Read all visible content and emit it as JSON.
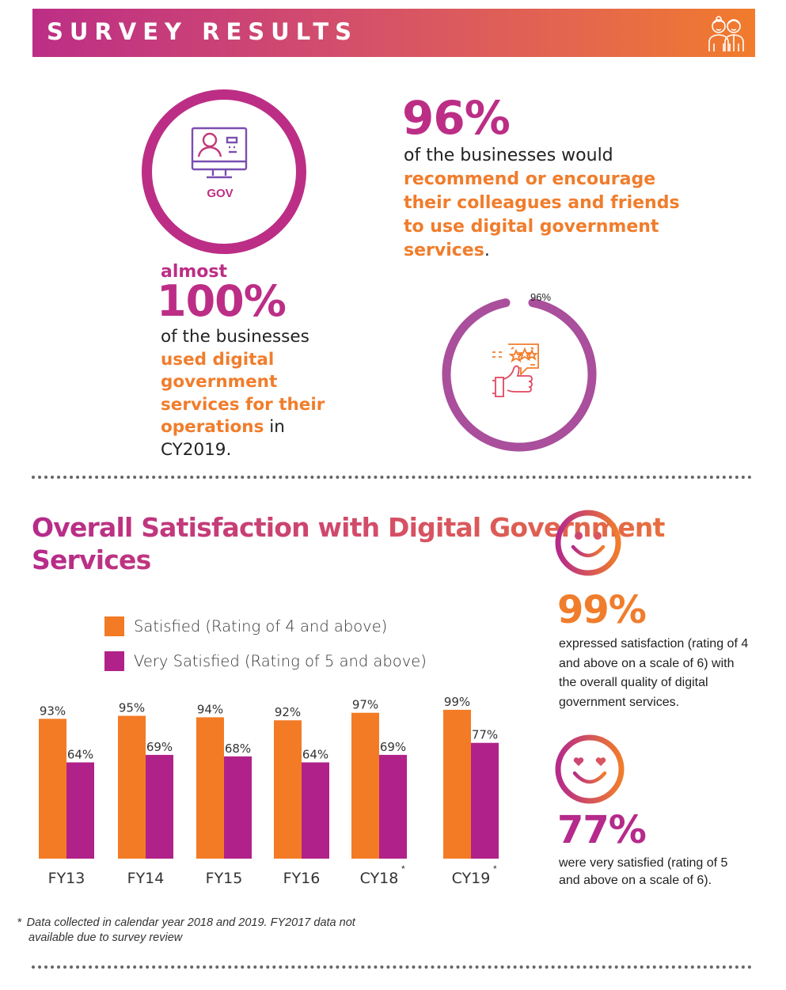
{
  "banner": {
    "title": "SURVEY RESULTS",
    "icon": "people-icon"
  },
  "gov_badge": {
    "label": "GOV",
    "icon": "computer-profile-icon"
  },
  "recommend": {
    "value": "96%",
    "lead": "of the businesses would",
    "highlight": "recommend or encourage their colleagues and friends to use digital government services",
    "tail": "."
  },
  "usage": {
    "prefix": "almost",
    "value": "100%",
    "lead": "of the businesses",
    "highlight": "used digital government services for their operations",
    "tail": " in CY2019."
  },
  "donut": {
    "label": "96%",
    "fraction": 0.96,
    "color": "#a94f9c",
    "icon": "thumbs-up-rating-icon"
  },
  "colors": {
    "satisfied": "#f37b25",
    "very_satisfied": "#b02289",
    "magenta": "#bc2e86",
    "orange": "#f07d2c"
  },
  "chart_data": {
    "type": "bar",
    "title": "Overall Satisfaction with Digital Government Services",
    "categories": [
      "FY13",
      "FY14",
      "FY15",
      "FY16",
      "CY18",
      "CY19"
    ],
    "category_marks": [
      "",
      "",
      "",
      "",
      "*",
      "*"
    ],
    "series": [
      {
        "name": "Satisfied (Rating of 4 and above)",
        "values": [
          93,
          95,
          94,
          92,
          97,
          99
        ]
      },
      {
        "name": "Very Satisfied (Rating of 5 and above)",
        "values": [
          64,
          69,
          68,
          64,
          69,
          77
        ]
      }
    ],
    "value_suffix": "%",
    "xlabel": "",
    "ylabel": "",
    "ylim": [
      0,
      100
    ],
    "grid": false,
    "legend": "top-left"
  },
  "footnote": {
    "mark": "*",
    "line1": "Data collected in calendar year 2018 and 2019. FY2017 data not",
    "line2": "available due to survey review"
  },
  "satisfied_stat": {
    "icon": "smiley-face-icon",
    "value": "99%",
    "text": "expressed satisfaction (rating of 4 and above on a scale of 6) with the overall quality of digital government services."
  },
  "very_satisfied_stat": {
    "icon": "heart-eyes-face-icon",
    "value": "77%",
    "text": "were very satisfied (rating of 5 and above on a scale of 6)."
  }
}
